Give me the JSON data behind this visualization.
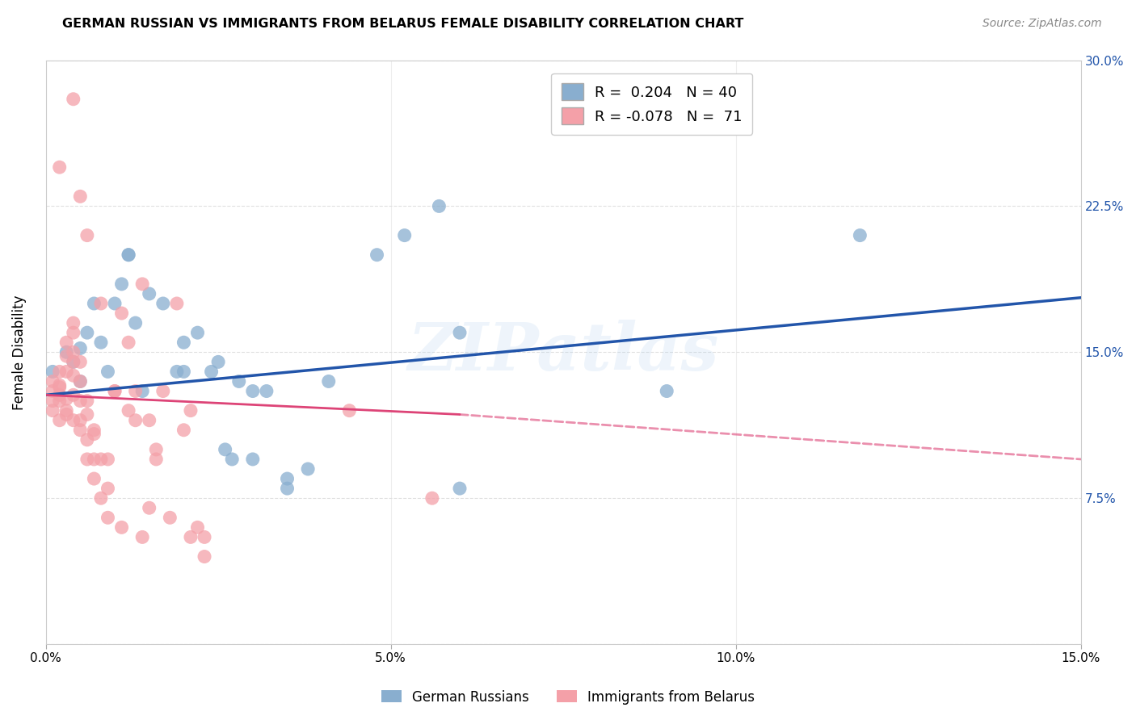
{
  "title": "GERMAN RUSSIAN VS IMMIGRANTS FROM BELARUS FEMALE DISABILITY CORRELATION CHART",
  "source": "Source: ZipAtlas.com",
  "ylabel": "Female Disability",
  "xmin": 0.0,
  "xmax": 0.15,
  "ymin": 0.0,
  "ymax": 0.3,
  "ytick_labels": [
    "",
    "7.5%",
    "15.0%",
    "22.5%",
    "30.0%"
  ],
  "ytick_positions": [
    0.0,
    0.075,
    0.15,
    0.225,
    0.3
  ],
  "xtick_positions": [
    0.0,
    0.05,
    0.1,
    0.15
  ],
  "xtick_labels": [
    "0.0%",
    "5.0%",
    "10.0%",
    "15.0%"
  ],
  "blue_color": "#89AECF",
  "pink_color": "#F4A0A8",
  "blue_line_color": "#2255AA",
  "pink_line_color": "#DD4477",
  "legend_R_blue": "0.204",
  "legend_N_blue": "40",
  "legend_R_pink": "-0.078",
  "legend_N_pink": "71",
  "legend_label_blue": "German Russians",
  "legend_label_pink": "Immigrants from Belarus",
  "watermark": "ZIPatlas",
  "blue_line": [
    [
      0.0,
      0.128
    ],
    [
      0.15,
      0.178
    ]
  ],
  "pink_line_solid": [
    [
      0.0,
      0.128
    ],
    [
      0.06,
      0.118
    ]
  ],
  "pink_line_dashed": [
    [
      0.06,
      0.118
    ],
    [
      0.15,
      0.095
    ]
  ],
  "blue_scatter": [
    [
      0.001,
      0.14
    ],
    [
      0.003,
      0.15
    ],
    [
      0.004,
      0.145
    ],
    [
      0.005,
      0.135
    ],
    [
      0.005,
      0.152
    ],
    [
      0.006,
      0.16
    ],
    [
      0.007,
      0.175
    ],
    [
      0.008,
      0.155
    ],
    [
      0.009,
      0.14
    ],
    [
      0.01,
      0.175
    ],
    [
      0.011,
      0.185
    ],
    [
      0.012,
      0.2
    ],
    [
      0.012,
      0.2
    ],
    [
      0.013,
      0.165
    ],
    [
      0.014,
      0.13
    ],
    [
      0.015,
      0.18
    ],
    [
      0.017,
      0.175
    ],
    [
      0.019,
      0.14
    ],
    [
      0.02,
      0.14
    ],
    [
      0.02,
      0.155
    ],
    [
      0.022,
      0.16
    ],
    [
      0.024,
      0.14
    ],
    [
      0.025,
      0.145
    ],
    [
      0.026,
      0.1
    ],
    [
      0.027,
      0.095
    ],
    [
      0.028,
      0.135
    ],
    [
      0.03,
      0.13
    ],
    [
      0.03,
      0.095
    ],
    [
      0.032,
      0.13
    ],
    [
      0.035,
      0.085
    ],
    [
      0.035,
      0.08
    ],
    [
      0.038,
      0.09
    ],
    [
      0.041,
      0.135
    ],
    [
      0.048,
      0.2
    ],
    [
      0.052,
      0.21
    ],
    [
      0.057,
      0.225
    ],
    [
      0.06,
      0.16
    ],
    [
      0.06,
      0.08
    ],
    [
      0.09,
      0.13
    ],
    [
      0.118,
      0.21
    ]
  ],
  "pink_scatter": [
    [
      0.001,
      0.125
    ],
    [
      0.001,
      0.13
    ],
    [
      0.001,
      0.135
    ],
    [
      0.001,
      0.12
    ],
    [
      0.002,
      0.128
    ],
    [
      0.002,
      0.132
    ],
    [
      0.002,
      0.115
    ],
    [
      0.002,
      0.125
    ],
    [
      0.002,
      0.133
    ],
    [
      0.002,
      0.14
    ],
    [
      0.003,
      0.118
    ],
    [
      0.003,
      0.126
    ],
    [
      0.003,
      0.14
    ],
    [
      0.003,
      0.148
    ],
    [
      0.003,
      0.155
    ],
    [
      0.003,
      0.12
    ],
    [
      0.004,
      0.138
    ],
    [
      0.004,
      0.15
    ],
    [
      0.004,
      0.16
    ],
    [
      0.004,
      0.115
    ],
    [
      0.004,
      0.128
    ],
    [
      0.004,
      0.145
    ],
    [
      0.004,
      0.165
    ],
    [
      0.005,
      0.115
    ],
    [
      0.005,
      0.125
    ],
    [
      0.005,
      0.135
    ],
    [
      0.005,
      0.145
    ],
    [
      0.005,
      0.11
    ],
    [
      0.006,
      0.125
    ],
    [
      0.006,
      0.105
    ],
    [
      0.006,
      0.118
    ],
    [
      0.006,
      0.095
    ],
    [
      0.007,
      0.11
    ],
    [
      0.007,
      0.095
    ],
    [
      0.007,
      0.108
    ],
    [
      0.007,
      0.085
    ],
    [
      0.008,
      0.095
    ],
    [
      0.008,
      0.075
    ],
    [
      0.008,
      0.175
    ],
    [
      0.009,
      0.08
    ],
    [
      0.009,
      0.095
    ],
    [
      0.009,
      0.065
    ],
    [
      0.01,
      0.13
    ],
    [
      0.01,
      0.13
    ],
    [
      0.011,
      0.17
    ],
    [
      0.011,
      0.06
    ],
    [
      0.012,
      0.12
    ],
    [
      0.012,
      0.155
    ],
    [
      0.013,
      0.115
    ],
    [
      0.013,
      0.13
    ],
    [
      0.014,
      0.185
    ],
    [
      0.014,
      0.055
    ],
    [
      0.015,
      0.115
    ],
    [
      0.015,
      0.07
    ],
    [
      0.016,
      0.095
    ],
    [
      0.016,
      0.1
    ],
    [
      0.017,
      0.13
    ],
    [
      0.018,
      0.065
    ],
    [
      0.019,
      0.175
    ],
    [
      0.02,
      0.11
    ],
    [
      0.021,
      0.055
    ],
    [
      0.021,
      0.12
    ],
    [
      0.022,
      0.06
    ],
    [
      0.023,
      0.045
    ],
    [
      0.023,
      0.055
    ],
    [
      0.002,
      0.245
    ],
    [
      0.004,
      0.28
    ],
    [
      0.005,
      0.23
    ],
    [
      0.006,
      0.21
    ],
    [
      0.044,
      0.12
    ],
    [
      0.056,
      0.075
    ]
  ]
}
